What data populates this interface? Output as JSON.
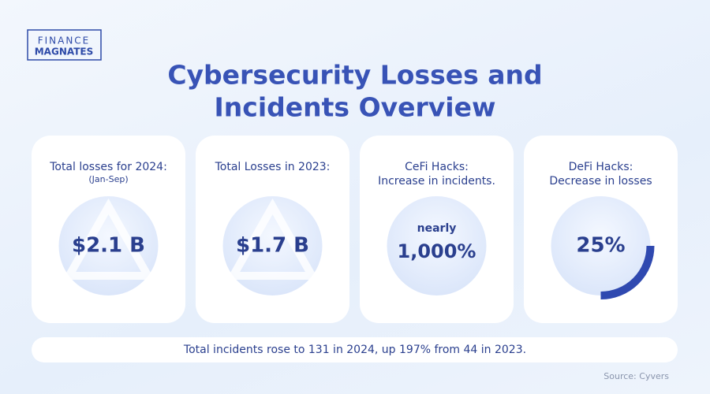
{
  "logo": {
    "line1": "FINANCE",
    "line2": "MAGNATES"
  },
  "title": {
    "line1": "Cybersecurity Losses and",
    "line2": "Incidents Overview"
  },
  "cards": [
    {
      "heading": "Total losses for 2024:",
      "subheading": "(Jan-Sep)",
      "value": "$2.1 B"
    },
    {
      "heading": "Total Losses in 2023:",
      "value": "$1.7 B"
    },
    {
      "heading": "CeFi Hacks:",
      "subheading": "Increase in incidents.",
      "prefix": "nearly",
      "value": "1,000%"
    },
    {
      "heading": "DeFi Hacks:",
      "subheading": "Decrease in losses",
      "value": "25%"
    }
  ],
  "footer": "Total incidents rose to 131 in 2024, up 197% from 44 in 2023.",
  "source": "Source: Cyvers"
}
